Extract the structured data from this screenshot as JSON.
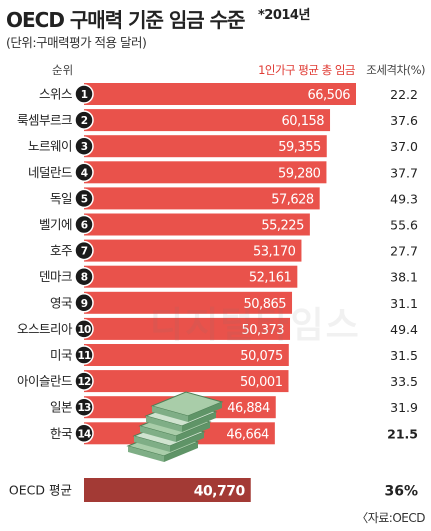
{
  "title": "OECD 구매력 기준 임금 수준",
  "title_note": "*2014년",
  "subtitle": "(단위:구매력평가 적용 달러)",
  "header_rank": "순위",
  "header_wage": "1인가구 평균 총 임금",
  "header_tax": "조세격차(%)",
  "source": "〈자료:OECD",
  "watermark": "디지털타임스",
  "colors": {
    "bar": "#e9524b",
    "avg_bar": "#a33a35",
    "badge": "#1a1a1a"
  },
  "chart_data": {
    "type": "bar",
    "orientation": "horizontal",
    "title": "OECD 구매력 기준 임금 수준",
    "ylabel": "1인가구 평균 총 임금",
    "categories": [
      "스위스",
      "룩셈부르크",
      "노르웨이",
      "네덜란드",
      "독일",
      "벨기에",
      "호주",
      "덴마크",
      "영국",
      "오스트리아",
      "미국",
      "아이슬란드",
      "일본",
      "한국"
    ],
    "ranks": [
      "1",
      "2",
      "3",
      "4",
      "5",
      "6",
      "7",
      "8",
      "9",
      "10",
      "11",
      "12",
      "13",
      "14"
    ],
    "value_labels": [
      "66,506",
      "60,158",
      "59,355",
      "59,280",
      "57,628",
      "55,225",
      "53,170",
      "52,161",
      "50,865",
      "50,373",
      "50,075",
      "50,001",
      "46,884",
      "46,664"
    ],
    "values": [
      66506,
      60158,
      59355,
      59280,
      57628,
      55225,
      53170,
      52161,
      50865,
      50373,
      50075,
      50001,
      46884,
      46664
    ],
    "tax_gap_labels": [
      "22.2",
      "37.6",
      "37.0",
      "37.7",
      "49.3",
      "55.6",
      "27.7",
      "38.1",
      "31.1",
      "49.4",
      "31.5",
      "33.5",
      "31.9",
      "21.5"
    ],
    "tax_gap": [
      22.2,
      37.6,
      37.0,
      37.7,
      49.3,
      55.6,
      27.7,
      38.1,
      31.1,
      49.4,
      31.5,
      33.5,
      31.9,
      21.5
    ],
    "average": {
      "label": "OECD 평균",
      "value": 40770,
      "value_label": "40,770",
      "tax_gap_label": "36%"
    }
  }
}
